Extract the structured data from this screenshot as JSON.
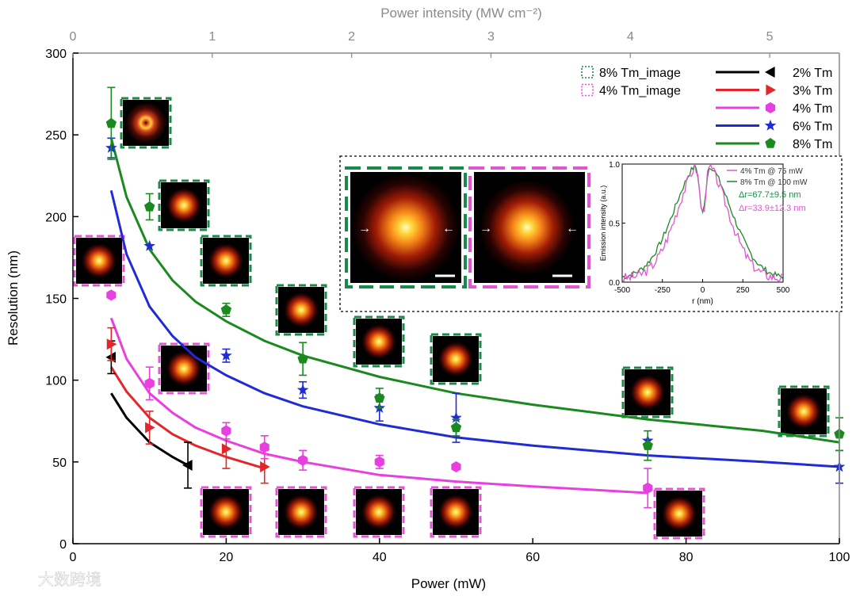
{
  "chart_data": {
    "type": "scatter",
    "title": "",
    "xlabel": "Power (mW)",
    "ylabel": "Resolution (nm)",
    "top_xlabel": "Power intensity (MW cm⁻²)",
    "xlim": [
      0,
      100
    ],
    "ylim": [
      0,
      300
    ],
    "top_xlim": [
      0,
      5.5
    ],
    "x_ticks": [
      0,
      20,
      40,
      60,
      80,
      100
    ],
    "y_ticks": [
      0,
      50,
      100,
      150,
      200,
      250,
      300
    ],
    "top_ticks": [
      0,
      1,
      2,
      3,
      4,
      5
    ],
    "legend_position": "top-right",
    "series": [
      {
        "name": "2% Tm",
        "color": "#000000",
        "marker": "tri-left",
        "x": [
          5,
          15
        ],
        "y": [
          114,
          48
        ],
        "err": [
          10,
          14
        ],
        "fit_x": [
          5,
          7,
          10,
          13,
          15
        ],
        "fit_y": [
          92,
          77,
          62,
          53,
          48
        ]
      },
      {
        "name": "3% Tm",
        "color": "#e3262b",
        "marker": "tri-right",
        "x": [
          5,
          10,
          20,
          25
        ],
        "y": [
          122,
          71,
          58,
          47
        ],
        "err": [
          10,
          10,
          12,
          10
        ],
        "fit_x": [
          5,
          7,
          10,
          13,
          16,
          20,
          25
        ],
        "fit_y": [
          108,
          93,
          77,
          67,
          60,
          53,
          46
        ]
      },
      {
        "name": "4% Tm",
        "color": "#e83fe0",
        "marker": "hexagon",
        "x": [
          5,
          10,
          20,
          25,
          30,
          40,
          50,
          75
        ],
        "y": [
          152,
          98,
          69,
          59,
          51,
          50,
          47,
          34
        ],
        "err": [
          0,
          10,
          5,
          7,
          6,
          4,
          0,
          12
        ],
        "fit_x": [
          5,
          7,
          10,
          13,
          16,
          20,
          25,
          30,
          40,
          50,
          60,
          75
        ],
        "fit_y": [
          138,
          113,
          92,
          80,
          71,
          63,
          55,
          50,
          42,
          38,
          35,
          31
        ]
      },
      {
        "name": "6% Tm",
        "color": "#1f2bd6",
        "marker": "star",
        "x": [
          5,
          10,
          20,
          30,
          40,
          50,
          75,
          100
        ],
        "y": [
          242,
          182,
          115,
          94,
          83,
          77,
          63,
          47
        ],
        "err": [
          6,
          0,
          4,
          5,
          8,
          15,
          0,
          10
        ],
        "fit_x": [
          5,
          7,
          10,
          13,
          16,
          20,
          25,
          30,
          40,
          50,
          60,
          75,
          90,
          100
        ],
        "fit_y": [
          216,
          177,
          145,
          127,
          114,
          103,
          92,
          84,
          73,
          65,
          60,
          54,
          50,
          47
        ]
      },
      {
        "name": "8% Tm",
        "color": "#1a8a1f",
        "marker": "pentagon",
        "x": [
          5,
          10,
          20,
          30,
          40,
          50,
          75,
          100
        ],
        "y": [
          257,
          206,
          143,
          113,
          89,
          71,
          60,
          67
        ],
        "err": [
          22,
          8,
          4,
          10,
          6,
          5,
          9,
          10
        ],
        "fit_x": [
          5,
          7,
          10,
          13,
          16,
          20,
          25,
          30,
          40,
          50,
          60,
          75,
          90,
          100
        ],
        "fit_y": [
          248,
          212,
          180,
          161,
          148,
          136,
          124,
          115,
          102,
          92,
          85,
          76,
          69,
          62
        ]
      }
    ],
    "image_legend": [
      {
        "name": "8% Tm_image",
        "color": "#1a8a4a"
      },
      {
        "name": "4% Tm_image",
        "color": "#e055d0"
      }
    ],
    "inset": {
      "xlabel": "r (nm)",
      "ylabel": "Emission intensity (a.u.)",
      "x_ticks": [
        "-500",
        "-250",
        "0",
        "250",
        "500"
      ],
      "y_ticks": [
        "0.0",
        "0.5",
        "1.0"
      ],
      "legend": [
        {
          "name": "4% Tm @ 75 mW",
          "color": "#e055d0"
        },
        {
          "name": "8% Tm @ 100 mW",
          "color": "#1a8a1f"
        }
      ],
      "annotations": [
        {
          "text": "Δr=67.7±9.5 nm",
          "color": "#1a8a4a"
        },
        {
          "text": "Δr=33.9±12.3 nm",
          "color": "#e055d0"
        }
      ]
    }
  },
  "watermark": "大数跨境"
}
